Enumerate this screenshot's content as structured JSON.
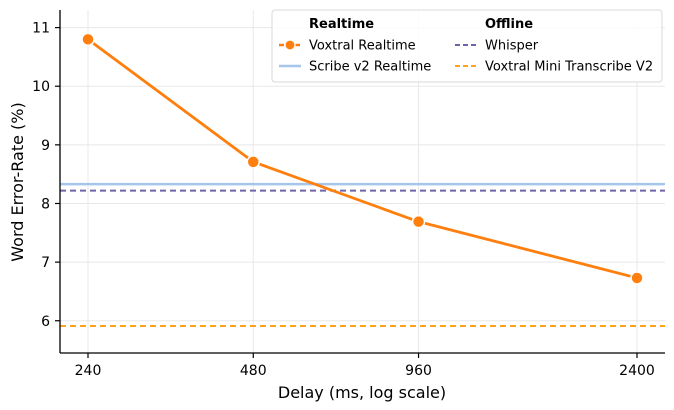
{
  "chart_data": {
    "type": "line",
    "title": "",
    "xlabel": "Delay (ms, log scale)",
    "ylabel": "Word Error-Rate (%)",
    "x_scale": "log",
    "x": [
      240,
      480,
      960,
      2400
    ],
    "x_tick_labels": [
      "240",
      "480",
      "960",
      "2400"
    ],
    "y_ticks": [
      6,
      7,
      8,
      9,
      10,
      11
    ],
    "y_tick_labels": [
      "6",
      "7",
      "8",
      "9",
      "10",
      "11"
    ],
    "ylim": [
      5.45,
      11.3
    ],
    "grid": true,
    "series": [
      {
        "name": "Voxtral Realtime",
        "group": "Realtime",
        "kind": "line-markers",
        "color": "#ff7f0e",
        "values": [
          10.8,
          8.71,
          7.69,
          6.73
        ]
      },
      {
        "name": "Scribe v2 Realtime",
        "group": "Realtime",
        "kind": "hline",
        "color": "#a6c5ea",
        "value": 8.33
      },
      {
        "name": "Whisper",
        "group": "Offline",
        "kind": "hline-dashed",
        "color": "#7063aa",
        "value": 8.22
      },
      {
        "name": "Voxtral Mini Transcribe V2",
        "group": "Offline",
        "kind": "hline-dashed",
        "color": "#ffa31a",
        "value": 5.91
      }
    ],
    "legend": {
      "placement": "top-right",
      "headers": {
        "realtime": "Realtime",
        "offline": "Offline"
      }
    }
  }
}
